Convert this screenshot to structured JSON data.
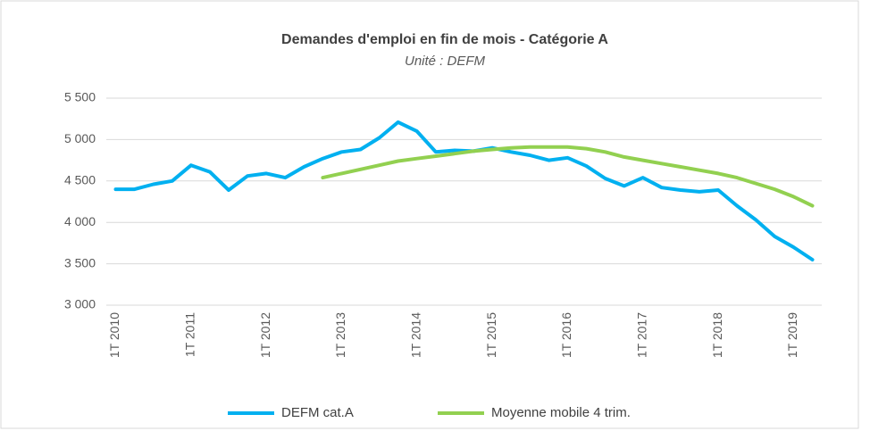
{
  "chart_data": {
    "type": "line",
    "title": "Demandes d'emploi en fin de mois - Catégorie A",
    "subtitle": "Unité : DEFM",
    "categories": [
      "1T 2010",
      null,
      null,
      null,
      "1T 2011",
      null,
      null,
      null,
      "1T 2012",
      null,
      null,
      null,
      "1T 2013",
      null,
      null,
      null,
      "1T 2014",
      null,
      null,
      null,
      "1T 2015",
      null,
      null,
      null,
      "1T 2016",
      null,
      null,
      null,
      "1T 2017",
      null,
      null,
      null,
      "1T 2018",
      null,
      null,
      null,
      "1T 2019",
      null
    ],
    "series": [
      {
        "name": "DEFM cat.A",
        "color": "#00b0f0",
        "values": [
          4400,
          4400,
          4460,
          4500,
          4690,
          4610,
          4390,
          4560,
          4590,
          4540,
          4670,
          4770,
          4850,
          4880,
          5020,
          5210,
          5100,
          4850,
          4870,
          4860,
          4900,
          4850,
          4810,
          4750,
          4780,
          4680,
          4530,
          4440,
          4540,
          4420,
          4390,
          4370,
          4390,
          4200,
          4030,
          3830,
          3700,
          3550
        ]
      },
      {
        "name": "Moyenne mobile 4 trim.",
        "color": "#92d050",
        "values": [
          null,
          null,
          null,
          null,
          null,
          null,
          null,
          null,
          null,
          null,
          null,
          4540,
          4590,
          4640,
          4690,
          4740,
          4770,
          4800,
          4830,
          4860,
          4880,
          4900,
          4910,
          4910,
          4910,
          4890,
          4850,
          4790,
          4750,
          4710,
          4670,
          4630,
          4590,
          4540,
          4470,
          4400,
          4310,
          4200
        ]
      }
    ],
    "ylim": [
      3000,
      5500
    ],
    "yticks": [
      {
        "value": 3000,
        "label": "3 000"
      },
      {
        "value": 3500,
        "label": "3 500"
      },
      {
        "value": 4000,
        "label": "4 000"
      },
      {
        "value": 4500,
        "label": "4 500"
      },
      {
        "value": 5000,
        "label": "5 000"
      },
      {
        "value": 5500,
        "label": "5 500"
      }
    ],
    "grid": true,
    "legend": "bottom"
  }
}
